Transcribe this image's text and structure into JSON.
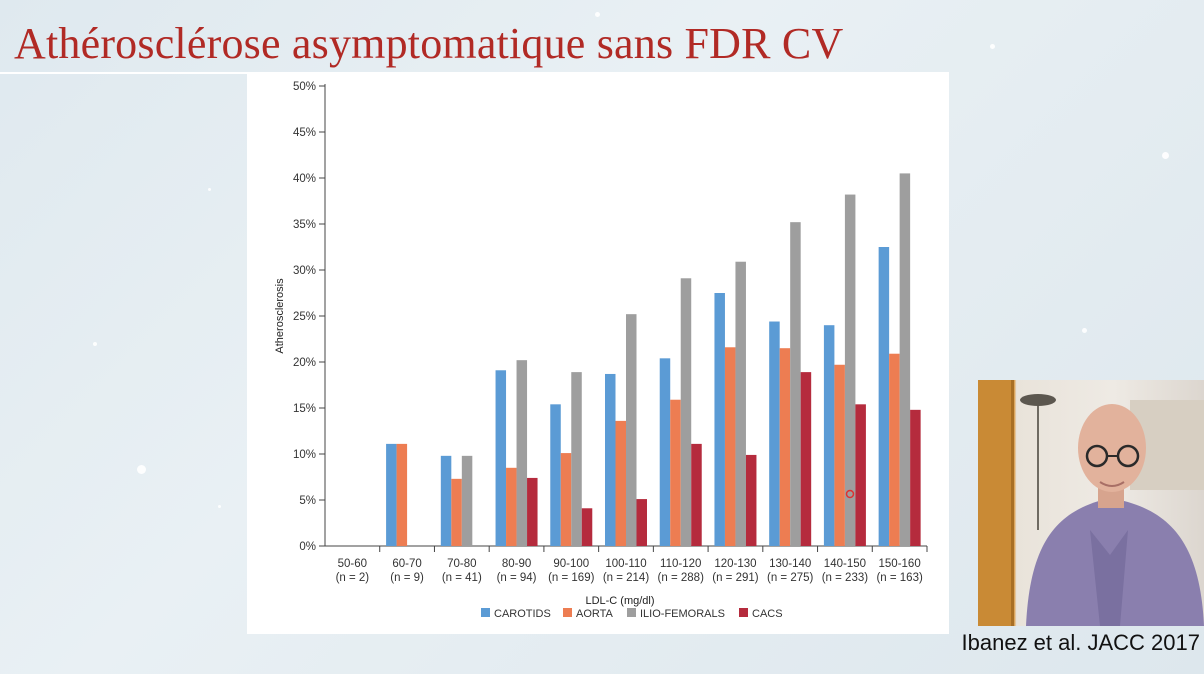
{
  "slide": {
    "title": "Athérosclérose asymptomatique sans FDR CV",
    "citation": "Ibanez et al. JACC 2017"
  },
  "chart_data": {
    "type": "bar",
    "xlabel": "LDL-C (mg/dl)",
    "ylabel": "Atherosclerosis",
    "ylim": [
      0,
      50
    ],
    "y_ticks": [
      "0%",
      "5%",
      "10%",
      "15%",
      "20%",
      "25%",
      "30%",
      "35%",
      "40%",
      "45%",
      "50%"
    ],
    "categories": [
      {
        "range": "50-60",
        "n": "(n = 2)"
      },
      {
        "range": "60-70",
        "n": "(n = 9)"
      },
      {
        "range": "70-80",
        "n": "(n = 41)"
      },
      {
        "range": "80-90",
        "n": "(n = 94)"
      },
      {
        "range": "90-100",
        "n": "(n = 169)"
      },
      {
        "range": "100-110",
        "n": "(n = 214)"
      },
      {
        "range": "110-120",
        "n": "(n = 288)"
      },
      {
        "range": "120-130",
        "n": "(n = 291)"
      },
      {
        "range": "130-140",
        "n": "(n = 275)"
      },
      {
        "range": "140-150",
        "n": "(n = 233)"
      },
      {
        "range": "150-160",
        "n": "(n = 163)"
      }
    ],
    "series": [
      {
        "name": "CAROTIDS",
        "color": "#5b9bd5",
        "values": [
          0,
          11.1,
          9.8,
          19.1,
          15.4,
          18.7,
          20.4,
          27.5,
          24.4,
          24.0,
          32.5
        ]
      },
      {
        "name": "AORTA",
        "color": "#ed7d52",
        "values": [
          0,
          11.1,
          7.3,
          8.5,
          10.1,
          13.6,
          15.9,
          21.6,
          21.5,
          19.7,
          20.9
        ]
      },
      {
        "name": "ILIO-FEMORALS",
        "color": "#9e9e9e",
        "values": [
          0,
          0,
          9.8,
          20.2,
          18.9,
          25.2,
          29.1,
          30.9,
          35.2,
          38.2,
          40.5
        ]
      },
      {
        "name": "CACS",
        "color": "#b52b3d",
        "values": [
          0,
          0,
          0,
          7.4,
          4.1,
          5.1,
          11.1,
          9.9,
          18.9,
          15.4,
          14.8
        ]
      }
    ],
    "legend_position": "bottom",
    "grid": false
  }
}
